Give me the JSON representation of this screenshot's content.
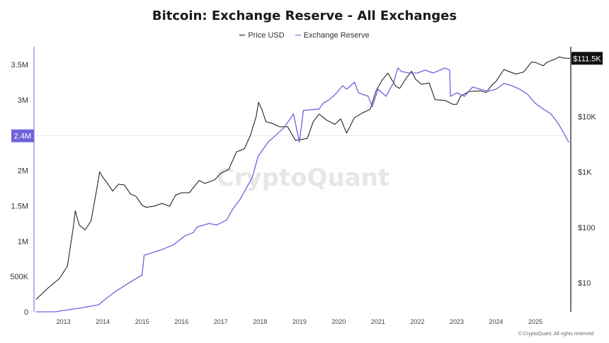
{
  "chart_data": {
    "type": "line",
    "title": "Bitcoin: Exchange Reserve - All Exchanges",
    "x_ticks": [
      "2013",
      "2014",
      "2015",
      "2016",
      "2017",
      "2018",
      "2019",
      "2020",
      "2021",
      "2022",
      "2023",
      "2024",
      "2025"
    ],
    "x_range": [
      2012.25,
      2025.9
    ],
    "y_left": {
      "ticks": [
        "0",
        "500K",
        "1M",
        "1.5M",
        "2M",
        "2.5M",
        "3M",
        "3.5M"
      ],
      "ylim": [
        0,
        3500000
      ]
    },
    "y_right": {
      "ticks": [
        "$10",
        "$100",
        "$1K",
        "$10K"
      ],
      "scale": "log",
      "ylim": [
        3,
        180000
      ]
    },
    "badges": {
      "left": "2.4M",
      "right": "$111.5K"
    },
    "watermark": "CryptoQuant",
    "copyright": "© CryptoQuant. All rights reserved",
    "series": [
      {
        "name": "Price USD",
        "color": "#111111",
        "axis": "right",
        "points": [
          [
            2012.3,
            5
          ],
          [
            2012.6,
            8
          ],
          [
            2012.9,
            12
          ],
          [
            2013.1,
            20
          ],
          [
            2013.25,
            100
          ],
          [
            2013.3,
            200
          ],
          [
            2013.4,
            110
          ],
          [
            2013.55,
            90
          ],
          [
            2013.7,
            130
          ],
          [
            2013.85,
            500
          ],
          [
            2013.92,
            1000
          ],
          [
            2014.0,
            800
          ],
          [
            2014.1,
            650
          ],
          [
            2014.25,
            450
          ],
          [
            2014.4,
            600
          ],
          [
            2014.55,
            580
          ],
          [
            2014.7,
            400
          ],
          [
            2014.85,
            360
          ],
          [
            2015.0,
            250
          ],
          [
            2015.1,
            230
          ],
          [
            2015.3,
            240
          ],
          [
            2015.5,
            270
          ],
          [
            2015.7,
            240
          ],
          [
            2015.85,
            380
          ],
          [
            2016.0,
            420
          ],
          [
            2016.2,
            420
          ],
          [
            2016.45,
            700
          ],
          [
            2016.6,
            620
          ],
          [
            2016.85,
            720
          ],
          [
            2017.0,
            950
          ],
          [
            2017.2,
            1100
          ],
          [
            2017.4,
            2300
          ],
          [
            2017.6,
            2600
          ],
          [
            2017.75,
            4500
          ],
          [
            2017.9,
            10000
          ],
          [
            2017.96,
            18000
          ],
          [
            2018.05,
            13000
          ],
          [
            2018.15,
            8000
          ],
          [
            2018.3,
            7500
          ],
          [
            2018.5,
            6500
          ],
          [
            2018.7,
            6500
          ],
          [
            2018.9,
            3700
          ],
          [
            2019.0,
            3800
          ],
          [
            2019.2,
            4000
          ],
          [
            2019.35,
            8000
          ],
          [
            2019.5,
            11000
          ],
          [
            2019.7,
            8500
          ],
          [
            2019.9,
            7200
          ],
          [
            2020.05,
            9000
          ],
          [
            2020.2,
            5000
          ],
          [
            2020.4,
            9500
          ],
          [
            2020.6,
            11500
          ],
          [
            2020.8,
            13500
          ],
          [
            2020.95,
            29000
          ],
          [
            2021.1,
            45000
          ],
          [
            2021.25,
            60000
          ],
          [
            2021.45,
            35000
          ],
          [
            2021.55,
            32000
          ],
          [
            2021.7,
            47000
          ],
          [
            2021.85,
            65000
          ],
          [
            2021.95,
            47000
          ],
          [
            2022.1,
            38000
          ],
          [
            2022.3,
            40000
          ],
          [
            2022.45,
            20000
          ],
          [
            2022.7,
            19500
          ],
          [
            2022.9,
            16500
          ],
          [
            2023.0,
            16500
          ],
          [
            2023.1,
            23000
          ],
          [
            2023.3,
            28000
          ],
          [
            2023.6,
            29000
          ],
          [
            2023.75,
            27000
          ],
          [
            2023.9,
            37000
          ],
          [
            2024.0,
            43000
          ],
          [
            2024.2,
            70000
          ],
          [
            2024.5,
            58000
          ],
          [
            2024.7,
            63000
          ],
          [
            2024.9,
            95000
          ],
          [
            2025.0,
            94000
          ],
          [
            2025.2,
            82000
          ],
          [
            2025.3,
            95000
          ],
          [
            2025.5,
            108000
          ],
          [
            2025.6,
            118000
          ],
          [
            2025.75,
            112000
          ],
          [
            2025.88,
            111500
          ]
        ]
      },
      {
        "name": "Exchange Reserve",
        "color": "#6d63dc",
        "axis": "left",
        "points": [
          [
            2012.3,
            0
          ],
          [
            2012.8,
            0
          ],
          [
            2012.9,
            10000
          ],
          [
            2013.5,
            60000
          ],
          [
            2013.9,
            100000
          ],
          [
            2014.0,
            150000
          ],
          [
            2014.3,
            280000
          ],
          [
            2014.7,
            420000
          ],
          [
            2015.0,
            520000
          ],
          [
            2015.05,
            800000
          ],
          [
            2015.5,
            880000
          ],
          [
            2015.8,
            950000
          ],
          [
            2016.1,
            1080000
          ],
          [
            2016.3,
            1120000
          ],
          [
            2016.4,
            1200000
          ],
          [
            2016.7,
            1250000
          ],
          [
            2016.9,
            1230000
          ],
          [
            2017.15,
            1300000
          ],
          [
            2017.3,
            1450000
          ],
          [
            2017.5,
            1600000
          ],
          [
            2017.8,
            1900000
          ],
          [
            2017.95,
            2200000
          ],
          [
            2018.2,
            2400000
          ],
          [
            2018.6,
            2600000
          ],
          [
            2018.85,
            2800000
          ],
          [
            2019.0,
            2400000
          ],
          [
            2019.1,
            2850000
          ],
          [
            2019.5,
            2870000
          ],
          [
            2019.6,
            2950000
          ],
          [
            2019.75,
            3000000
          ],
          [
            2019.9,
            3070000
          ],
          [
            2020.1,
            3200000
          ],
          [
            2020.2,
            3150000
          ],
          [
            2020.4,
            3250000
          ],
          [
            2020.5,
            3100000
          ],
          [
            2020.75,
            3050000
          ],
          [
            2020.85,
            2900000
          ],
          [
            2021.0,
            3150000
          ],
          [
            2021.2,
            3050000
          ],
          [
            2021.4,
            3250000
          ],
          [
            2021.5,
            3450000
          ],
          [
            2021.6,
            3400000
          ],
          [
            2021.8,
            3380000
          ],
          [
            2022.0,
            3380000
          ],
          [
            2022.2,
            3420000
          ],
          [
            2022.4,
            3380000
          ],
          [
            2022.7,
            3450000
          ],
          [
            2022.82,
            3420000
          ],
          [
            2022.84,
            3050000
          ],
          [
            2023.0,
            3100000
          ],
          [
            2023.2,
            3050000
          ],
          [
            2023.4,
            3180000
          ],
          [
            2023.6,
            3150000
          ],
          [
            2023.8,
            3120000
          ],
          [
            2024.0,
            3150000
          ],
          [
            2024.2,
            3230000
          ],
          [
            2024.4,
            3200000
          ],
          [
            2024.6,
            3150000
          ],
          [
            2024.8,
            3080000
          ],
          [
            2025.0,
            2950000
          ],
          [
            2025.2,
            2870000
          ],
          [
            2025.4,
            2800000
          ],
          [
            2025.6,
            2650000
          ],
          [
            2025.75,
            2500000
          ],
          [
            2025.85,
            2400000
          ]
        ]
      }
    ]
  }
}
